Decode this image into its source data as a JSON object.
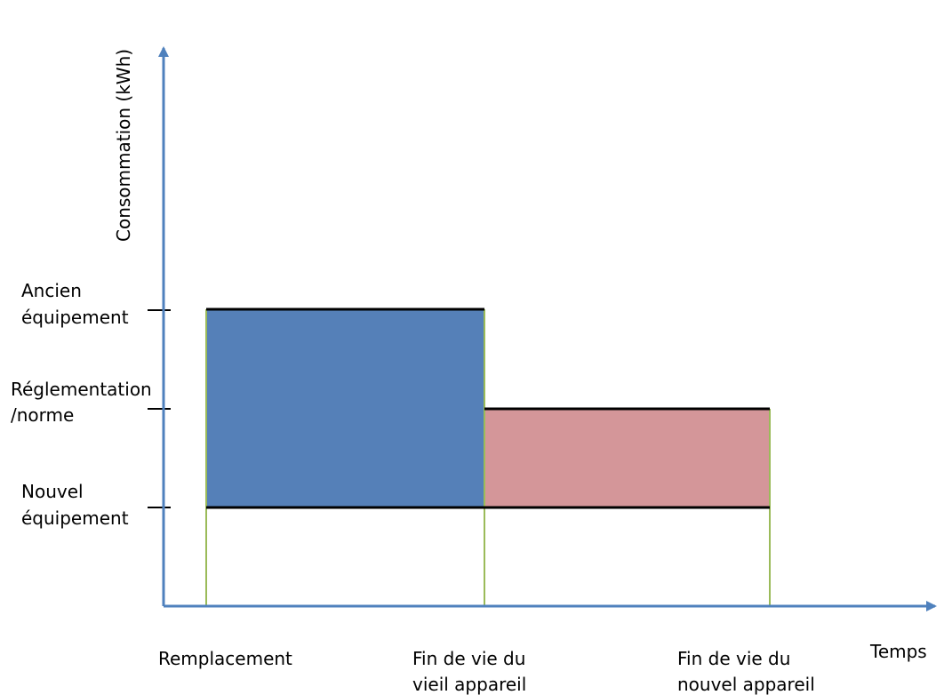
{
  "colors": {
    "axis": "#4F81BD",
    "old_area": "#5580B8",
    "new_area": "#D49699",
    "vertical_lines": "#9BBB59",
    "level_lines": "#000000"
  },
  "y_axis": {
    "title": "Consommation (kWh)",
    "levels": [
      {
        "lines": [
          "Ancien",
          "équipement"
        ]
      },
      {
        "lines": [
          "Réglementation",
          "/norme"
        ]
      },
      {
        "lines": [
          "Nouvel",
          "équipement"
        ]
      }
    ]
  },
  "x_axis": {
    "title": "Temps",
    "events": [
      {
        "lines": [
          "Remplacement"
        ]
      },
      {
        "lines": [
          "Fin de vie du",
          "vieil appareil"
        ]
      },
      {
        "lines": [
          "Fin de vie du",
          "nouvel appareil"
        ]
      }
    ]
  }
}
